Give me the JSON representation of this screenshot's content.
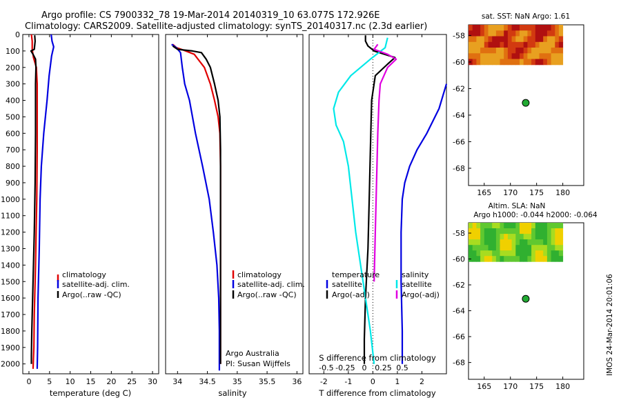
{
  "titles": {
    "line1": "Argo profile: CS 7900332_78 19-Mar-2014 20140319_10 63.077S 172.926E",
    "line2": "Climatology: CARS2009. Satellite-adjusted climatology: synTS_20140317.nc (2.3d earlier)"
  },
  "colors": {
    "climatology": "#e00000",
    "satellite": "#0000e0",
    "argo": "#000000",
    "temp_sat": "#00e8e8",
    "sal_argo": "#e000e0"
  },
  "chart_data": [
    {
      "id": "temperature",
      "type": "line",
      "xlabel": "temperature (deg C)",
      "ylabel": "",
      "xlim": [
        -1.5,
        31.5
      ],
      "ylim": [
        2060,
        0
      ],
      "y_inverted": true,
      "xticks": [
        0,
        5,
        10,
        15,
        20,
        25,
        30
      ],
      "xtick_labels": [
        "0",
        "5",
        "10",
        "15",
        "20",
        "25",
        "30"
      ],
      "yticks": [
        0,
        100,
        200,
        300,
        400,
        500,
        600,
        700,
        800,
        900,
        1000,
        1100,
        1200,
        1300,
        1400,
        1500,
        1600,
        1700,
        1800,
        1900,
        2000
      ],
      "ytick_labels": [
        "0",
        "100",
        "200",
        "300",
        "400",
        "500",
        "600",
        "700",
        "800",
        "900",
        "1000",
        "1100",
        "1200",
        "1300",
        "1400",
        "1500",
        "1600",
        "1700",
        "1800",
        "1900",
        "2000"
      ],
      "legend": [
        "climatology",
        "satellite-adj. clim.",
        "Argo(..raw -QC)"
      ],
      "series": [
        {
          "name": "climatology",
          "color": "#e00000",
          "points": [
            [
              0.6,
              0
            ],
            [
              0.8,
              40
            ],
            [
              0.8,
              90
            ],
            [
              1.1,
              140
            ],
            [
              1.8,
              200
            ],
            [
              2.0,
              300
            ],
            [
              2.0,
              700
            ],
            [
              1.9,
              1000
            ],
            [
              1.6,
              1400
            ],
            [
              1.3,
              1700
            ],
            [
              1.2,
              1900
            ],
            [
              1.0,
              2030
            ]
          ]
        },
        {
          "name": "satellite-adj. clim.",
          "color": "#0000e0",
          "points": [
            [
              5.4,
              0
            ],
            [
              5.6,
              40
            ],
            [
              6.0,
              75
            ],
            [
              5.5,
              130
            ],
            [
              4.9,
              250
            ],
            [
              4.4,
              400
            ],
            [
              3.6,
              600
            ],
            [
              3.0,
              800
            ],
            [
              2.7,
              1000
            ],
            [
              2.5,
              1300
            ],
            [
              2.2,
              1600
            ],
            [
              2.1,
              1900
            ],
            [
              2.0,
              2030
            ]
          ]
        },
        {
          "name": "Argo(..raw -QC)",
          "color": "#000000",
          "points": [
            [
              1.4,
              5
            ],
            [
              1.5,
              40
            ],
            [
              1.3,
              90
            ],
            [
              0.5,
              100
            ],
            [
              1.0,
              120
            ],
            [
              1.6,
              150
            ],
            [
              1.7,
              200
            ],
            [
              1.6,
              300
            ],
            [
              1.6,
              600
            ],
            [
              1.5,
              900
            ],
            [
              1.3,
              1200
            ],
            [
              1.0,
              1500
            ],
            [
              0.7,
              1800
            ],
            [
              0.6,
              1950
            ],
            [
              0.6,
              2000
            ]
          ]
        }
      ]
    },
    {
      "id": "salinity",
      "type": "line",
      "xlabel": "salinity",
      "ylabel": "",
      "xlim": [
        33.8,
        36.1
      ],
      "ylim": [
        2060,
        0
      ],
      "y_inverted": true,
      "xticks": [
        34,
        34.5,
        35,
        35.5,
        36
      ],
      "xtick_labels": [
        "34",
        "34.5",
        "35",
        "35.5",
        "36"
      ],
      "legend": [
        "climatology",
        "satellite-adj. clim.",
        "Argo(..raw -QC)"
      ],
      "annotation": [
        "Argo Australia",
        "PI: Susan Wijffels"
      ],
      "series": [
        {
          "name": "climatology",
          "color": "#e00000",
          "points": [
            [
              33.92,
              60
            ],
            [
              33.98,
              80
            ],
            [
              34.1,
              95
            ],
            [
              34.28,
              120
            ],
            [
              34.45,
              200
            ],
            [
              34.55,
              300
            ],
            [
              34.62,
              400
            ],
            [
              34.68,
              500
            ],
            [
              34.71,
              600
            ],
            [
              34.72,
              800
            ],
            [
              34.72,
              1200
            ],
            [
              34.72,
              1600
            ],
            [
              34.72,
              2000
            ]
          ]
        },
        {
          "name": "satellite-adj. clim.",
          "color": "#0000e0",
          "points": [
            [
              33.9,
              60
            ],
            [
              33.98,
              80
            ],
            [
              34.05,
              110
            ],
            [
              34.08,
              200
            ],
            [
              34.12,
              300
            ],
            [
              34.2,
              400
            ],
            [
              34.3,
              600
            ],
            [
              34.42,
              800
            ],
            [
              34.53,
              1000
            ],
            [
              34.6,
              1200
            ],
            [
              34.66,
              1400
            ],
            [
              34.69,
              1600
            ],
            [
              34.7,
              1800
            ],
            [
              34.7,
              2040
            ]
          ]
        },
        {
          "name": "Argo(..raw -QC)",
          "color": "#000000",
          "points": [
            [
              33.92,
              70
            ],
            [
              34.0,
              90
            ],
            [
              34.25,
              100
            ],
            [
              34.4,
              110
            ],
            [
              34.48,
              150
            ],
            [
              34.55,
              200
            ],
            [
              34.62,
              300
            ],
            [
              34.68,
              400
            ],
            [
              34.71,
              500
            ],
            [
              34.72,
              700
            ],
            [
              34.72,
              1200
            ],
            [
              34.72,
              1700
            ],
            [
              34.72,
              2000
            ]
          ]
        }
      ]
    },
    {
      "id": "difference",
      "type": "line",
      "xlabel": "T difference from climatology",
      "x2label": "S difference from climatology",
      "xlim": [
        -2.6,
        3.0
      ],
      "ylim": [
        2060,
        0
      ],
      "y_inverted": true,
      "xticks": [
        -2,
        -1,
        0,
        1,
        2
      ],
      "xtick_labels": [
        "-2",
        "-1",
        "0",
        "1",
        "2"
      ],
      "x2ticks": [
        -0.5,
        -0.25,
        0,
        0.25,
        0.5
      ],
      "x2tick_labels": [
        "-0.5",
        "-0.25",
        "0",
        "0.25",
        "0.5"
      ],
      "legend_headers": [
        "temperature",
        "salinity"
      ],
      "legend": [
        "satellite",
        "Argo(-adj)",
        "satellite",
        "Argo(-adj)"
      ],
      "series": [
        {
          "name": "temperature satellite",
          "color": "#0000e0",
          "points": [
            [
              3.0,
              300
            ],
            [
              2.7,
              450
            ],
            [
              2.2,
              600
            ],
            [
              1.8,
              700
            ],
            [
              1.5,
              800
            ],
            [
              1.3,
              900
            ],
            [
              1.2,
              1000
            ],
            [
              1.15,
              1200
            ],
            [
              1.15,
              1500
            ],
            [
              1.2,
              1800
            ],
            [
              1.2,
              2000
            ]
          ]
        },
        {
          "name": "temperature Argo(-adj)",
          "color": "#000000",
          "points": [
            [
              -0.3,
              5
            ],
            [
              -0.3,
              40
            ],
            [
              -0.2,
              70
            ],
            [
              0.05,
              100
            ],
            [
              0.9,
              140
            ],
            [
              0.6,
              180
            ],
            [
              0.1,
              250
            ],
            [
              -0.05,
              400
            ],
            [
              -0.1,
              700
            ],
            [
              -0.15,
              1000
            ],
            [
              -0.2,
              1300
            ],
            [
              -0.3,
              1600
            ],
            [
              -0.35,
              1850
            ],
            [
              -0.35,
              2000
            ]
          ]
        },
        {
          "name": "salinity satellite",
          "color": "#00e8e8",
          "points": [
            [
              0.6,
              20
            ],
            [
              0.5,
              80
            ],
            [
              -0.1,
              150
            ],
            [
              -0.9,
              250
            ],
            [
              -1.4,
              350
            ],
            [
              -1.6,
              450
            ],
            [
              -1.5,
              550
            ],
            [
              -1.2,
              650
            ],
            [
              -1.0,
              800
            ],
            [
              -0.85,
              1000
            ],
            [
              -0.7,
              1200
            ],
            [
              -0.5,
              1400
            ],
            [
              -0.3,
              1600
            ],
            [
              -0.1,
              1800
            ],
            [
              0.05,
              2000
            ]
          ]
        },
        {
          "name": "salinity Argo(-adj)",
          "color": "#e000e0",
          "points": [
            [
              0.2,
              60
            ],
            [
              0.05,
              90
            ],
            [
              0.6,
              120
            ],
            [
              0.95,
              150
            ],
            [
              0.6,
              200
            ],
            [
              0.3,
              300
            ],
            [
              0.25,
              400
            ],
            [
              0.2,
              600
            ],
            [
              0.15,
              900
            ],
            [
              0.1,
              1200
            ],
            [
              0.05,
              1500
            ]
          ]
        }
      ]
    },
    {
      "id": "map-sst",
      "type": "heatmap",
      "title": "sat. SST: NaN Argo: 1.61",
      "xlim": [
        162,
        184
      ],
      "ylim": [
        -69.3,
        -57.2
      ],
      "xticks": [
        165,
        170,
        175,
        180
      ],
      "xtick_labels": [
        "165",
        "170",
        "175",
        "180"
      ],
      "yticks": [
        -58,
        -60,
        -62,
        -64,
        -66,
        -68
      ],
      "ytick_labels": [
        "-58",
        "-60",
        "-62",
        "-64",
        "-66",
        "-68"
      ],
      "coverage": {
        "lon": [
          162,
          180
        ],
        "lat": [
          -60.2,
          -57.2
        ]
      },
      "argo_position": {
        "lon": 172.926,
        "lat": -63.077
      }
    },
    {
      "id": "map-sla",
      "type": "heatmap",
      "title": "Altim. SLA: NaN",
      "subtitle": "Argo h1000: -0.044 h2000: -0.064",
      "xlim": [
        162,
        184
      ],
      "ylim": [
        -69.3,
        -57.2
      ],
      "xticks": [
        165,
        170,
        175,
        180
      ],
      "xtick_labels": [
        "165",
        "170",
        "175",
        "180"
      ],
      "yticks": [
        -58,
        -60,
        -62,
        -64,
        -66,
        -68
      ],
      "ytick_labels": [
        "-58",
        "-60",
        "-62",
        "-64",
        "-66",
        "-68"
      ],
      "coverage": {
        "lon": [
          162,
          180
        ],
        "lat": [
          -60.2,
          -57.2
        ]
      },
      "argo_position": {
        "lon": 172.926,
        "lat": -63.077
      }
    }
  ],
  "credit": "IMOS 24-Mar-2014 20:01:06"
}
